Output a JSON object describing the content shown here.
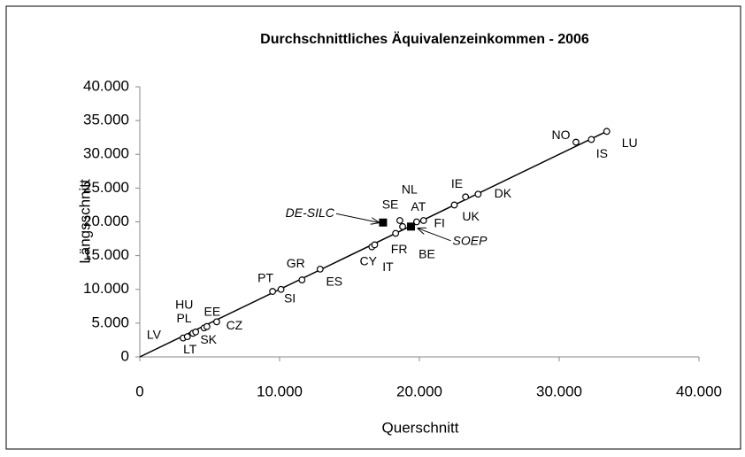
{
  "chart_data": {
    "type": "scatter",
    "title": "Durchschnittliches Äquivalenzeinkommen - 2006",
    "xlabel": "Querschnitt",
    "ylabel": "Längsschnitt",
    "xlim": [
      0,
      40000
    ],
    "ylim": [
      0,
      40000
    ],
    "xticks": [
      0,
      {
        "value": 10000,
        "label": "10.000"
      },
      {
        "value": 20000,
        "label": "20.000"
      },
      {
        "value": 30000,
        "label": "30.000"
      },
      {
        "value": 40000,
        "label": "40.000"
      }
    ],
    "yticks": [
      0,
      {
        "value": 5000,
        "label": "5.000"
      },
      {
        "value": 10000,
        "label": "10.000"
      },
      {
        "value": 15000,
        "label": "15.000"
      },
      {
        "value": 20000,
        "label": "20.000"
      },
      {
        "value": 25000,
        "label": "25.000"
      },
      {
        "value": 30000,
        "label": "30.000"
      },
      {
        "value": 35000,
        "label": "35.000"
      },
      {
        "value": 40000,
        "label": "40.000"
      }
    ],
    "x": [
      3100,
      3400,
      3800,
      4000,
      4600,
      4800,
      5500,
      9500,
      10100,
      11600,
      12900,
      16600,
      16800,
      18300,
      19400,
      18600,
      18800,
      19800,
      20300,
      22500,
      23300,
      24200,
      31200,
      32300,
      33400
    ],
    "series": [
      {
        "color": "#000000",
        "values": [
          2800,
          3000,
          3500,
          3700,
          4300,
          4500,
          5200,
          9700,
          10000,
          11400,
          13000,
          16300,
          16600,
          18300,
          19300,
          20200,
          19300,
          20000,
          20200,
          22500,
          23700,
          24100,
          31800,
          32200,
          33400
        ]
      }
    ],
    "point_labels": [
      "LV",
      "LT",
      "PL",
      "HU",
      "SK",
      "EE",
      "CZ",
      "PT",
      "SI",
      "GR",
      "ES",
      "CY",
      "IT",
      "FR",
      "BE",
      "NL",
      "SE",
      "AT",
      "FI",
      "IE",
      "UK",
      "DK",
      "NO",
      "IS",
      "LU"
    ],
    "highlight": {
      "labels": [
        "DE-SILC",
        "SOEP"
      ],
      "x": [
        17400,
        19400
      ],
      "values": [
        19900,
        19300
      ]
    },
    "fit_line": {
      "x": [
        0,
        33400
      ],
      "values": [
        0,
        33400
      ]
    }
  }
}
